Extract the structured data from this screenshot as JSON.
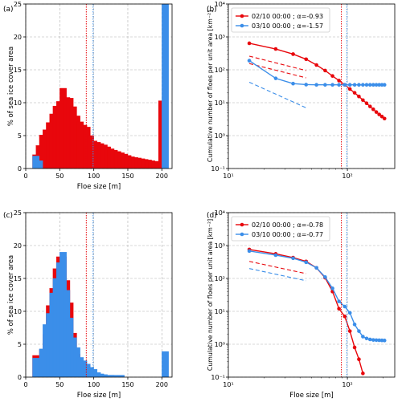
{
  "colors": {
    "red": "#e8070c",
    "blue": "#3b8ee9",
    "grid": "#b0b0b0",
    "axis": "#000000"
  },
  "chart_data": [
    {
      "panel": "(a)",
      "type": "bar",
      "xlabel": "Floe size [m]",
      "ylabel": "% of sea ice cover area",
      "xlim": [
        0,
        215
      ],
      "ylim": [
        0,
        25
      ],
      "xticks": [
        0,
        50,
        100,
        150,
        200
      ],
      "yticks": [
        0,
        5,
        10,
        15,
        20,
        25
      ],
      "bin_width": 10,
      "vlines": [
        {
          "x": 89,
          "color": "red"
        },
        {
          "x": 99,
          "color": "blue"
        }
      ],
      "series": [
        {
          "color": "red",
          "x": [
            15,
            20,
            25,
            30,
            35,
            40,
            45,
            50,
            55,
            60,
            65,
            70,
            75,
            80,
            85,
            90,
            95,
            100,
            105,
            110,
            115,
            120,
            125,
            130,
            135,
            140,
            145,
            150,
            155,
            160,
            165,
            170,
            175,
            180,
            185,
            190,
            195,
            200
          ],
          "values": [
            2.1,
            3.5,
            5.1,
            5.9,
            7.0,
            8.3,
            9.5,
            10.2,
            12.2,
            10.8,
            10.7,
            9.4,
            8.0,
            7.1,
            6.6,
            6.3,
            5.0,
            4.2,
            4.0,
            3.8,
            3.6,
            3.3,
            3.0,
            2.8,
            2.6,
            2.4,
            2.2,
            2.0,
            1.8,
            1.7,
            1.6,
            1.5,
            1.4,
            1.3,
            1.2,
            1.1,
            1.0,
            10.3
          ]
        },
        {
          "color": "blue",
          "x": [
            15,
            20,
            205
          ],
          "values": [
            1.9,
            1.2,
            25
          ]
        }
      ]
    },
    {
      "panel": "(b)",
      "type": "line",
      "xscale": "log",
      "yscale": "log",
      "xlabel": "",
      "ylabel": "Cumulative number of floes per unit area [km⁻²]",
      "xlim": [
        10,
        250
      ],
      "ylim": [
        0.1,
        10000
      ],
      "yticklabels": [
        "10⁻¹",
        "10⁰",
        "10¹",
        "10²",
        "10³",
        "10⁴"
      ],
      "xticklabels": [
        "10¹",
        "10²"
      ],
      "legend": "top-left",
      "vlines": [
        {
          "x": 89,
          "color": "red"
        },
        {
          "x": 99,
          "color": "blue"
        }
      ],
      "series": [
        {
          "name": "02/10 00:00 ; α=-0.93",
          "color": "red",
          "x": [
            15,
            25,
            35,
            45,
            55,
            65,
            75,
            85,
            95,
            105,
            115,
            125,
            135,
            145,
            155,
            165,
            175,
            185,
            195,
            205
          ],
          "y": [
            640,
            430,
            300,
            210,
            140,
            95,
            65,
            47,
            35,
            26,
            20,
            15.5,
            12,
            9.6,
            7.7,
            6.3,
            5.2,
            4.4,
            3.8,
            3.3
          ]
        },
        {
          "name": "03/10 00:00 ; α=-1.57",
          "color": "blue",
          "x": [
            15,
            25,
            35,
            45,
            55,
            65,
            75,
            85,
            95,
            105,
            115,
            125,
            135,
            145,
            155,
            165,
            175,
            185,
            195,
            205
          ],
          "y": [
            190,
            55,
            38,
            35.5,
            35,
            35,
            35,
            35,
            35,
            35,
            35,
            35,
            35,
            35,
            35,
            35,
            35,
            35,
            35,
            35
          ]
        }
      ],
      "fit_lines": [
        {
          "color": "red",
          "x": [
            15,
            45
          ],
          "y": [
            260,
            95
          ]
        },
        {
          "color": "red",
          "x": [
            15,
            45
          ],
          "y": [
            155,
            57
          ]
        },
        {
          "color": "blue",
          "x": [
            15,
            45
          ],
          "y": [
            42,
            7
          ]
        }
      ]
    },
    {
      "panel": "(c)",
      "type": "bar",
      "xlabel": "Floe size [m]",
      "ylabel": "% of sea ice cover area",
      "xlim": [
        0,
        215
      ],
      "ylim": [
        0,
        25
      ],
      "xticks": [
        0,
        50,
        100,
        150,
        200
      ],
      "yticks": [
        0,
        5,
        10,
        15,
        20,
        25
      ],
      "bin_width": 10,
      "vlines": [
        {
          "x": 89,
          "color": "red"
        },
        {
          "x": 99,
          "color": "blue"
        }
      ],
      "series": [
        {
          "color": "red",
          "x": [
            15,
            20,
            25,
            30,
            35,
            40,
            45,
            50,
            55,
            60,
            65,
            70,
            75,
            80,
            85,
            90
          ],
          "values": [
            3.3,
            1.0,
            4.2,
            6.5,
            10.9,
            13.5,
            16.5,
            18.3,
            18.3,
            14.7,
            11.3,
            6.7,
            3.5,
            1.0,
            0.3,
            0.1
          ]
        },
        {
          "color": "blue",
          "x": [
            15,
            20,
            25,
            30,
            35,
            40,
            45,
            50,
            55,
            60,
            65,
            70,
            75,
            80,
            85,
            90,
            95,
            100,
            105,
            110,
            115,
            120,
            125,
            130,
            135,
            140,
            205
          ],
          "values": [
            2.9,
            0.9,
            4.3,
            8.0,
            9.7,
            12.8,
            15.0,
            17.4,
            19.0,
            13.2,
            9.0,
            6.0,
            4.5,
            3.0,
            2.5,
            2.0,
            1.5,
            1.2,
            0.7,
            0.5,
            0.4,
            0.3,
            0.3,
            0.3,
            0.2,
            0.3,
            3.9
          ]
        }
      ]
    },
    {
      "panel": "(d)",
      "type": "line",
      "xscale": "log",
      "yscale": "log",
      "xlabel": "Floe size [m]",
      "ylabel": "Cumulative number of floes per unit area [km⁻²]",
      "xlim": [
        10,
        250
      ],
      "ylim": [
        0.1,
        10000
      ],
      "yticklabels": [
        "10⁻¹",
        "10⁰",
        "10¹",
        "10²",
        "10³",
        "10⁴"
      ],
      "xticklabels": [
        "10¹",
        "10²"
      ],
      "legend": "top-left",
      "vlines": [
        {
          "x": 89,
          "color": "red"
        },
        {
          "x": 99,
          "color": "blue"
        }
      ],
      "series": [
        {
          "name": "02/10 00:00 ; α=-0.78",
          "color": "red",
          "x": [
            15,
            25,
            35,
            45,
            55,
            65,
            75,
            85,
            95,
            105,
            115,
            125,
            135
          ],
          "y": [
            760,
            560,
            430,
            330,
            210,
            105,
            40,
            12,
            7,
            2.5,
            0.8,
            0.35,
            0.13
          ]
        },
        {
          "name": "03/10 00:00 ; α=-0.77",
          "color": "blue",
          "x": [
            15,
            25,
            35,
            45,
            55,
            65,
            75,
            85,
            95,
            105,
            115,
            125,
            135,
            145,
            155,
            165,
            175,
            185,
            195,
            205
          ],
          "y": [
            680,
            510,
            410,
            310,
            210,
            110,
            50,
            20,
            14,
            9,
            4,
            2.5,
            1.7,
            1.5,
            1.4,
            1.35,
            1.33,
            1.32,
            1.31,
            1.3
          ]
        }
      ],
      "fit_lines": [
        {
          "color": "red",
          "x": [
            15,
            45
          ],
          "y": [
            330,
            140
          ]
        },
        {
          "color": "blue",
          "x": [
            15,
            45
          ],
          "y": [
            200,
            85
          ]
        }
      ]
    }
  ]
}
